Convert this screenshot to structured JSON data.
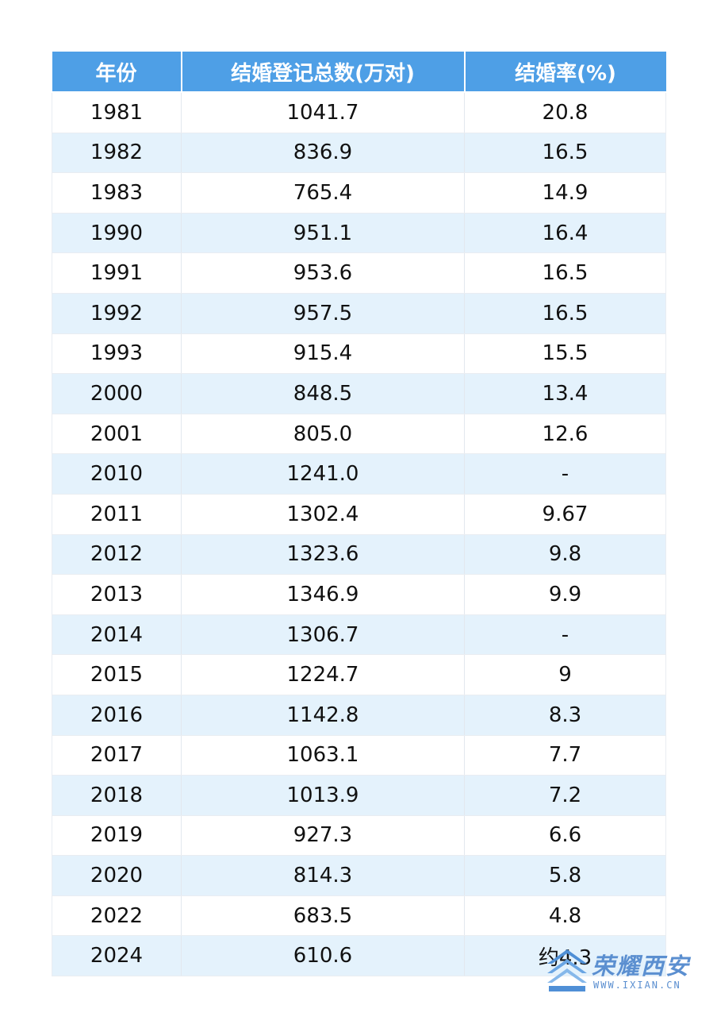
{
  "table": {
    "headers": [
      "年份",
      "结婚登记总数(万对)",
      "结婚率(%)"
    ],
    "rows": [
      [
        "1981",
        "1041.7",
        "20.8"
      ],
      [
        "1982",
        "836.9",
        "16.5"
      ],
      [
        "1983",
        "765.4",
        "14.9"
      ],
      [
        "1990",
        "951.1",
        "16.4"
      ],
      [
        "1991",
        "953.6",
        "16.5"
      ],
      [
        "1992",
        "957.5",
        "16.5"
      ],
      [
        "1993",
        "915.4",
        "15.5"
      ],
      [
        "2000",
        "848.5",
        "13.4"
      ],
      [
        "2001",
        "805.0",
        "12.6"
      ],
      [
        "2010",
        "1241.0",
        "-"
      ],
      [
        "2011",
        "1302.4",
        "9.67"
      ],
      [
        "2012",
        "1323.6",
        "9.8"
      ],
      [
        "2013",
        "1346.9",
        "9.9"
      ],
      [
        "2014",
        "1306.7",
        "-"
      ],
      [
        "2015",
        "1224.7",
        "9"
      ],
      [
        "2016",
        "1142.8",
        "8.3"
      ],
      [
        "2017",
        "1063.1",
        "7.7"
      ],
      [
        "2018",
        "1013.9",
        "7.2"
      ],
      [
        "2019",
        "927.3",
        "6.6"
      ],
      [
        "2020",
        "814.3",
        "5.8"
      ],
      [
        "2022",
        "683.5",
        "4.8"
      ],
      [
        "2024",
        "610.6",
        "约4.3"
      ]
    ]
  },
  "watermark": {
    "name": "荣耀西安",
    "url": "WWW.IXIAN.CN",
    "color": "#5b8fd0"
  },
  "colors": {
    "header_bg": "#4e9fe6",
    "stripe_bg": "#e4f2fc"
  }
}
